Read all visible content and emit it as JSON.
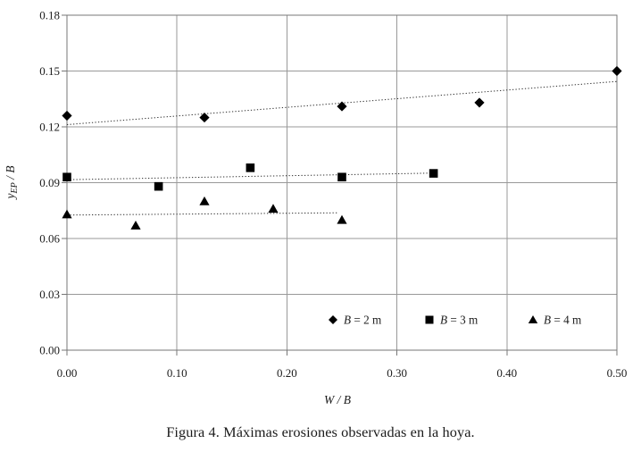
{
  "figure": {
    "caption": "Figura 4. Máximas erosiones observadas en la hoya."
  },
  "chart_data": {
    "type": "scatter",
    "title": "",
    "xlabel": {
      "var": "W",
      "sub": "",
      "rest": " / B"
    },
    "ylabel": {
      "var": "y",
      "sub": "EP",
      "rest": " / B"
    },
    "xlim": [
      0,
      0.5
    ],
    "ylim": [
      0,
      0.18
    ],
    "xticks": [
      0.0,
      0.1,
      0.2,
      0.3,
      0.4,
      0.5
    ],
    "yticks": [
      0.0,
      0.03,
      0.06,
      0.09,
      0.12,
      0.15,
      0.18
    ],
    "grid": true,
    "legend_position": "inside-bottom",
    "series": [
      {
        "name": "B = 2 m",
        "marker": "diamond",
        "points": [
          [
            0.0,
            0.126
          ],
          [
            0.125,
            0.125
          ],
          [
            0.25,
            0.131
          ],
          [
            0.375,
            0.133
          ],
          [
            0.5,
            0.15
          ]
        ],
        "trend": {
          "x": [
            0.0,
            0.5
          ],
          "y": [
            0.1212,
            0.1444
          ]
        }
      },
      {
        "name": "B = 3 m",
        "marker": "square",
        "points": [
          [
            0.0,
            0.093
          ],
          [
            0.0833,
            0.088
          ],
          [
            0.1667,
            0.098
          ],
          [
            0.25,
            0.093
          ],
          [
            0.3333,
            0.095
          ]
        ],
        "trend": {
          "x": [
            0.0,
            0.337
          ],
          "y": [
            0.0916,
            0.0952
          ]
        }
      },
      {
        "name": "B = 4 m",
        "marker": "triangle",
        "points": [
          [
            0.0,
            0.073
          ],
          [
            0.0625,
            0.067
          ],
          [
            0.125,
            0.08
          ],
          [
            0.1875,
            0.076
          ],
          [
            0.25,
            0.07
          ]
        ],
        "trend": {
          "x": [
            0.0,
            0.246
          ],
          "y": [
            0.0726,
            0.0738
          ]
        }
      }
    ],
    "colors": {
      "marker": "#000000",
      "grid": "#999999",
      "frame": "#777777",
      "trend": "#2e2e2e",
      "text": "#1c1c1c",
      "background": "#ffffff"
    }
  }
}
